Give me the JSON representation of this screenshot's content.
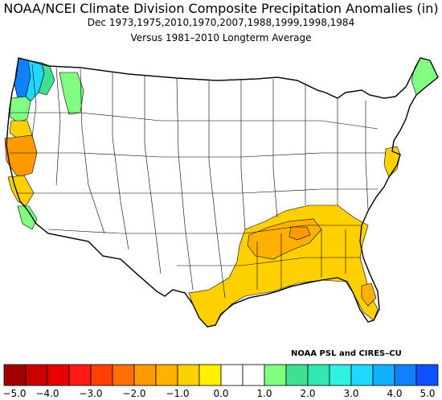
{
  "title": "NOAA/NCEI Climate Division Composite Precipitation Anomalies (in)",
  "subtitle_period": "Dec  1973,1975,2010,1970,2007,1988,1999,1998,1984",
  "subtitle_base": "Versus 1981–2010 Longterm Average",
  "credit": "NOAA PSL and CIRES–CU",
  "colorbar": {
    "tick_labels": [
      "−5.0",
      "−4.0",
      "−3.0",
      "−2.0",
      "−1.0",
      "0.0",
      "1.0",
      "2.0",
      "3.0",
      "4.0",
      "5.0"
    ],
    "bin_edges": [
      -5.0,
      -4.5,
      -4.0,
      -3.5,
      -3.0,
      -2.5,
      -2.0,
      -1.5,
      -1.0,
      -0.5,
      0.0,
      0.5,
      1.0,
      1.5,
      2.0,
      2.5,
      3.0,
      3.5,
      4.0,
      4.5,
      5.0
    ],
    "colors": [
      "#a00000",
      "#c80000",
      "#e60000",
      "#ff1a1a",
      "#ff4000",
      "#ff7000",
      "#ff9900",
      "#ffb000",
      "#ffd000",
      "#fff000",
      "#ffffff",
      "#ffffff",
      "#80ff80",
      "#40e090",
      "#30e8b0",
      "#30f0e0",
      "#20d8ff",
      "#10b0ff",
      "#1080ff",
      "#1050ff"
    ]
  },
  "chart_data": {
    "type": "heatmap",
    "variable": "Precipitation anomaly (in)",
    "value_range": [
      -5.0,
      5.0
    ],
    "regions": [
      {
        "name": "Washington coast/Olympics",
        "anomaly": 3.5
      },
      {
        "name": "Washington Cascades west slope",
        "anomaly": 2.5
      },
      {
        "name": "Eastern Washington",
        "anomaly": 1.0
      },
      {
        "name": "Northern Idaho panhandle",
        "anomaly": 1.0
      },
      {
        "name": "Oregon coast",
        "anomaly": 1.0
      },
      {
        "name": "Northern California coast",
        "anomaly": -1.0
      },
      {
        "name": "Northern California interior",
        "anomaly": -2.0
      },
      {
        "name": "Central California coast",
        "anomaly": -1.0
      },
      {
        "name": "Southern California coast",
        "anomaly": 1.0
      },
      {
        "name": "Maine",
        "anomaly": 1.0
      },
      {
        "name": "Maryland/Delaware",
        "anomaly": -1.0
      },
      {
        "name": "Mississippi/Alabama",
        "anomaly": -1.5
      },
      {
        "name": "Louisiana",
        "anomaly": -1.5
      },
      {
        "name": "Georgia/South Carolina",
        "anomaly": -1.0
      },
      {
        "name": "Texas Gulf coast",
        "anomaly": -1.0
      },
      {
        "name": "Florida peninsula",
        "anomaly": -1.0
      }
    ]
  }
}
